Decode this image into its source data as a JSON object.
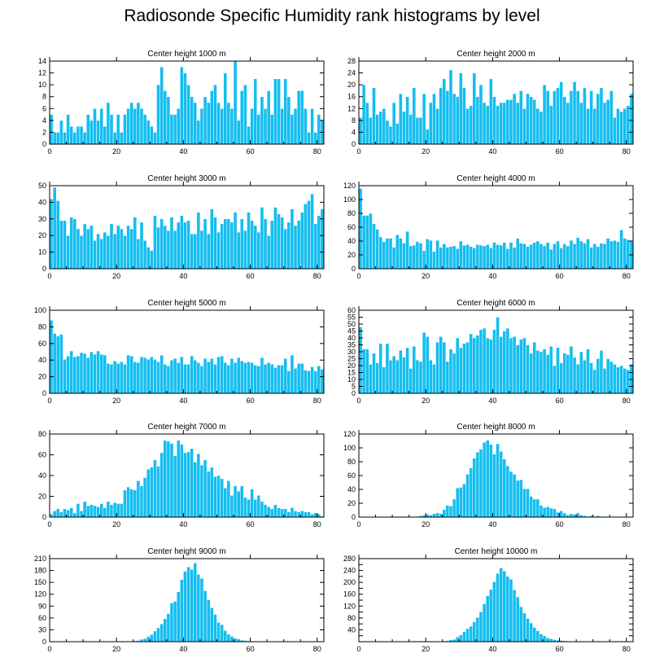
{
  "title": "Radiosonde Specific Humidity rank histograms by level",
  "colors": {
    "bar": "#14bef0",
    "bar_edge": "#ffffff",
    "axis": "#000000",
    "background": "#ffffff"
  },
  "chart_data": [
    {
      "type": "bar",
      "title": "Center height 1000 m",
      "xlabel": "",
      "ylabel": "",
      "xlim": [
        0,
        82
      ],
      "ylim": [
        0,
        14
      ],
      "xticks": [
        0,
        20,
        40,
        60,
        80
      ],
      "yticks": [
        0,
        2,
        4,
        6,
        8,
        10,
        12,
        14
      ],
      "x_start": 0,
      "values": [
        5,
        2,
        2,
        4,
        2,
        5,
        3,
        2,
        3,
        3,
        2,
        5,
        4,
        6,
        4,
        6,
        3,
        7,
        5,
        2,
        5,
        2,
        5,
        6,
        7,
        6,
        7,
        6,
        5,
        4,
        3,
        2,
        10,
        13,
        9,
        8,
        5,
        5,
        6,
        13,
        12,
        10,
        8,
        7,
        4,
        6,
        8,
        7,
        9,
        10,
        7,
        6,
        12,
        7,
        6,
        14,
        4,
        9,
        10,
        3,
        6,
        11,
        5,
        8,
        6,
        9,
        5,
        11,
        11,
        6,
        11,
        8,
        5,
        6,
        9,
        9,
        6,
        2,
        6,
        2,
        5,
        4
      ]
    },
    {
      "type": "bar",
      "title": "Center height 2000 m",
      "xlabel": "",
      "ylabel": "",
      "xlim": [
        0,
        82
      ],
      "ylim": [
        0,
        28
      ],
      "xticks": [
        0,
        20,
        40,
        60,
        80
      ],
      "yticks": [
        0,
        4,
        8,
        12,
        16,
        20,
        24,
        28
      ],
      "x_start": 0,
      "values": [
        9,
        20,
        14,
        9,
        19,
        10,
        11,
        12,
        8,
        6,
        14,
        7,
        17,
        11,
        16,
        10,
        19,
        9,
        9,
        17,
        5,
        14,
        17,
        12,
        19,
        22,
        18,
        25,
        17,
        16,
        24,
        19,
        12,
        13,
        24,
        16,
        20,
        14,
        13,
        22,
        16,
        13,
        14,
        14,
        15,
        15,
        17,
        14,
        18,
        12,
        17,
        16,
        15,
        12,
        11,
        20,
        18,
        13,
        18,
        19,
        21,
        16,
        14,
        18,
        21,
        18,
        14,
        19,
        12,
        18,
        12,
        17,
        19,
        14,
        15,
        18,
        9,
        12,
        11,
        12,
        13,
        17
      ]
    },
    {
      "type": "bar",
      "title": "Center height 3000 m",
      "xlabel": "",
      "ylabel": "",
      "xlim": [
        0,
        82
      ],
      "ylim": [
        0,
        50
      ],
      "xticks": [
        0,
        20,
        40,
        60,
        80
      ],
      "yticks": [
        0,
        10,
        20,
        30,
        40,
        50
      ],
      "x_start": 0,
      "values": [
        42,
        49,
        41,
        29,
        29,
        20,
        31,
        30,
        24,
        20,
        27,
        24,
        26,
        17,
        21,
        18,
        22,
        20,
        27,
        21,
        26,
        24,
        20,
        26,
        24,
        31,
        18,
        28,
        17,
        13,
        11,
        32,
        25,
        30,
        26,
        23,
        31,
        23,
        28,
        32,
        28,
        29,
        21,
        21,
        34,
        23,
        30,
        21,
        36,
        31,
        22,
        27,
        30,
        30,
        28,
        34,
        22,
        30,
        23,
        34,
        29,
        26,
        22,
        37,
        30,
        20,
        29,
        37,
        33,
        31,
        24,
        28,
        36,
        26,
        29,
        34,
        39,
        41,
        45,
        27,
        32,
        36
      ]
    },
    {
      "type": "bar",
      "title": "Center height 4000 m",
      "xlabel": "",
      "ylabel": "",
      "xlim": [
        0,
        82
      ],
      "ylim": [
        0,
        120
      ],
      "xticks": [
        0,
        20,
        40,
        60,
        80
      ],
      "yticks": [
        0,
        20,
        40,
        60,
        80,
        100,
        120
      ],
      "x_start": 0,
      "values": [
        116,
        77,
        77,
        80,
        65,
        57,
        46,
        39,
        44,
        44,
        31,
        49,
        44,
        37,
        54,
        33,
        34,
        39,
        37,
        26,
        43,
        41,
        25,
        41,
        31,
        36,
        31,
        32,
        33,
        29,
        40,
        34,
        35,
        32,
        30,
        35,
        34,
        33,
        35,
        30,
        38,
        35,
        34,
        38,
        29,
        38,
        31,
        44,
        37,
        36,
        32,
        35,
        38,
        40,
        36,
        33,
        38,
        28,
        36,
        40,
        30,
        36,
        33,
        41,
        36,
        45,
        40,
        37,
        43,
        31,
        36,
        32,
        37,
        36,
        44,
        40,
        41,
        39,
        56,
        44,
        42,
        40
      ]
    },
    {
      "type": "bar",
      "title": "Center height 5000 m",
      "xlabel": "",
      "ylabel": "",
      "xlim": [
        0,
        82
      ],
      "ylim": [
        0,
        100
      ],
      "xticks": [
        0,
        20,
        40,
        60,
        80
      ],
      "yticks": [
        0,
        20,
        40,
        60,
        80,
        100
      ],
      "x_start": 0,
      "values": [
        88,
        72,
        69,
        71,
        41,
        45,
        51,
        44,
        45,
        49,
        48,
        43,
        50,
        47,
        51,
        47,
        46,
        36,
        35,
        39,
        36,
        38,
        35,
        46,
        45,
        38,
        37,
        44,
        43,
        41,
        44,
        41,
        38,
        46,
        35,
        33,
        40,
        42,
        37,
        44,
        35,
        35,
        45,
        40,
        37,
        33,
        42,
        38,
        42,
        35,
        44,
        45,
        37,
        34,
        42,
        37,
        43,
        39,
        37,
        38,
        37,
        34,
        33,
        43,
        35,
        37,
        35,
        31,
        34,
        34,
        42,
        27,
        46,
        30,
        36,
        36,
        28,
        27,
        32,
        27,
        33,
        29
      ]
    },
    {
      "type": "bar",
      "title": "Center height 6000 m",
      "xlabel": "",
      "ylabel": "",
      "xlim": [
        0,
        82
      ],
      "ylim": [
        0,
        60
      ],
      "xticks": [
        0,
        20,
        40,
        60,
        80
      ],
      "yticks": [
        0,
        5,
        10,
        15,
        20,
        25,
        30,
        35,
        40,
        45,
        50,
        55,
        60
      ],
      "x_start": 0,
      "values": [
        48,
        32,
        32,
        21,
        29,
        22,
        36,
        19,
        36,
        24,
        27,
        24,
        31,
        26,
        33,
        18,
        34,
        24,
        23,
        44,
        41,
        24,
        21,
        37,
        41,
        37,
        23,
        32,
        29,
        40,
        33,
        36,
        37,
        43,
        40,
        42,
        46,
        47,
        40,
        39,
        46,
        55,
        41,
        45,
        47,
        40,
        41,
        35,
        39,
        40,
        35,
        29,
        37,
        31,
        30,
        32,
        28,
        34,
        20,
        33,
        22,
        29,
        28,
        34,
        26,
        21,
        30,
        24,
        32,
        22,
        17,
        25,
        31,
        18,
        25,
        23,
        21,
        19,
        20,
        18,
        17,
        21
      ]
    },
    {
      "type": "bar",
      "title": "Center height 7000 m",
      "xlabel": "",
      "ylabel": "",
      "xlim": [
        0,
        82
      ],
      "ylim": [
        0,
        80
      ],
      "xticks": [
        0,
        20,
        40,
        60,
        80
      ],
      "yticks": [
        0,
        20,
        40,
        60,
        80
      ],
      "x_start": 0,
      "values": [
        3,
        6,
        8,
        5,
        8,
        7,
        9,
        4,
        13,
        6,
        15,
        11,
        12,
        11,
        10,
        13,
        9,
        15,
        12,
        14,
        13,
        13,
        26,
        29,
        27,
        26,
        35,
        30,
        38,
        46,
        48,
        55,
        49,
        62,
        74,
        73,
        71,
        59,
        74,
        70,
        62,
        63,
        66,
        53,
        61,
        50,
        55,
        44,
        48,
        39,
        40,
        37,
        28,
        35,
        21,
        30,
        25,
        30,
        19,
        17,
        27,
        17,
        21,
        15,
        12,
        10,
        8,
        12,
        9,
        8,
        8,
        5,
        9,
        6,
        5,
        6,
        5,
        5,
        3,
        4,
        3,
        1
      ]
    },
    {
      "type": "bar",
      "title": "Center height 8000 m",
      "xlabel": "",
      "ylabel": "",
      "xlim": [
        0,
        82
      ],
      "ylim": [
        0,
        120
      ],
      "xticks": [
        0,
        20,
        40,
        60,
        80
      ],
      "yticks": [
        0,
        20,
        40,
        60,
        80,
        100,
        120
      ],
      "x_start": 0,
      "values": [
        0,
        0,
        0,
        0,
        0,
        0,
        0,
        0,
        0,
        1,
        0,
        0,
        0,
        1,
        0,
        1,
        0,
        1,
        2,
        3,
        4,
        3,
        5,
        6,
        5,
        11,
        17,
        16,
        26,
        42,
        43,
        48,
        62,
        71,
        85,
        94,
        98,
        108,
        111,
        105,
        91,
        106,
        95,
        84,
        74,
        66,
        62,
        53,
        54,
        41,
        41,
        30,
        26,
        26,
        17,
        14,
        15,
        13,
        12,
        7,
        9,
        6,
        3,
        5,
        4,
        6,
        3,
        2,
        1,
        2,
        1,
        2,
        1,
        1,
        0,
        1,
        0,
        0,
        0,
        0,
        0,
        0
      ]
    },
    {
      "type": "bar",
      "title": "Center height 9000 m",
      "xlabel": "",
      "ylabel": "",
      "xlim": [
        0,
        82
      ],
      "ylim": [
        0,
        210
      ],
      "xticks": [
        0,
        20,
        40,
        60,
        80
      ],
      "yticks": [
        0,
        30,
        60,
        90,
        120,
        150,
        180,
        210
      ],
      "x_start": 0,
      "values": [
        0,
        0,
        0,
        0,
        0,
        0,
        0,
        0,
        0,
        0,
        0,
        0,
        0,
        0,
        0,
        0,
        0,
        0,
        0,
        0,
        0,
        0,
        0,
        1,
        1,
        2,
        3,
        6,
        8,
        13,
        18,
        27,
        35,
        45,
        58,
        71,
        98,
        102,
        126,
        157,
        178,
        189,
        183,
        199,
        170,
        160,
        129,
        106,
        86,
        69,
        49,
        43,
        28,
        19,
        14,
        9,
        7,
        4,
        3,
        2,
        1,
        1,
        0,
        0,
        0,
        0,
        0,
        0,
        0,
        0,
        0,
        0,
        0,
        0,
        0,
        0,
        0,
        0,
        0,
        0,
        0,
        0
      ]
    },
    {
      "type": "bar",
      "title": "Center height 10000 m",
      "xlabel": "",
      "ylabel": "",
      "xlim": [
        0,
        82
      ],
      "ylim": [
        0,
        280
      ],
      "xticks": [
        0,
        20,
        40,
        60,
        80
      ],
      "yticks": [
        0,
        20,
        40,
        60,
        80,
        100,
        120,
        140,
        160,
        180,
        200,
        220,
        240,
        260,
        280
      ],
      "ytick_labels": [
        "",
        "",
        "40",
        "",
        "80",
        "",
        "120",
        "",
        "160",
        "",
        "200",
        "",
        "240",
        "",
        "280"
      ],
      "x_start": 0,
      "values": [
        0,
        0,
        0,
        0,
        0,
        0,
        0,
        0,
        0,
        0,
        0,
        0,
        0,
        0,
        0,
        0,
        0,
        0,
        0,
        0,
        0,
        0,
        0,
        0,
        1,
        2,
        3,
        6,
        8,
        16,
        23,
        34,
        44,
        52,
        67,
        82,
        101,
        128,
        155,
        176,
        202,
        230,
        249,
        238,
        220,
        211,
        175,
        151,
        118,
        97,
        79,
        63,
        48,
        37,
        26,
        20,
        13,
        10,
        7,
        5,
        4,
        3,
        2,
        1,
        1,
        1,
        0,
        0,
        0,
        0,
        0,
        0,
        0,
        0,
        0,
        0,
        0,
        0,
        0,
        0,
        0,
        0
      ]
    }
  ]
}
